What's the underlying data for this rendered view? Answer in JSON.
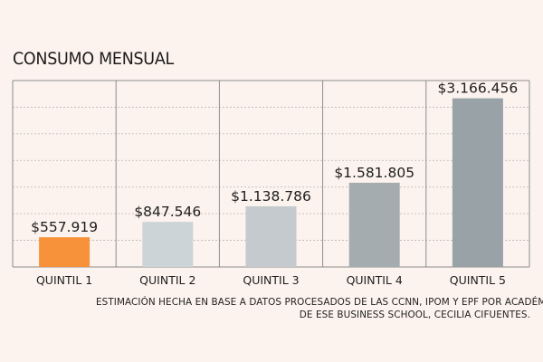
{
  "chart_data": {
    "type": "bar",
    "title": "CONSUMO MENSUAL",
    "categories": [
      "QUINTIL 1",
      "QUINTIL 2",
      "QUINTIL 3",
      "QUINTIL 4",
      "QUINTIL 5"
    ],
    "values": [
      557919,
      847546,
      1138786,
      1581805,
      3166456
    ],
    "value_labels": [
      "$557.919",
      "$847.546",
      "$1.138.786",
      "$1.581.805",
      "$3.166.456"
    ],
    "colors": [
      "#f7923a",
      "#ccd4d8",
      "#c4cacd",
      "#a4acb0",
      "#98a2a7"
    ],
    "xlabel": "",
    "ylabel": "",
    "ylim": [
      0,
      3500000
    ],
    "grid": true,
    "legend": "none"
  },
  "source_note": {
    "line1": "ESTIMACIÓN HECHA EN BASE A DATOS PROCESADOS DE LAS CCNN, IPOM Y EPF POR ACADÉMICA",
    "line2": "DE ESE BUSINESS SCHOOL, CECILIA CIFUENTES."
  }
}
